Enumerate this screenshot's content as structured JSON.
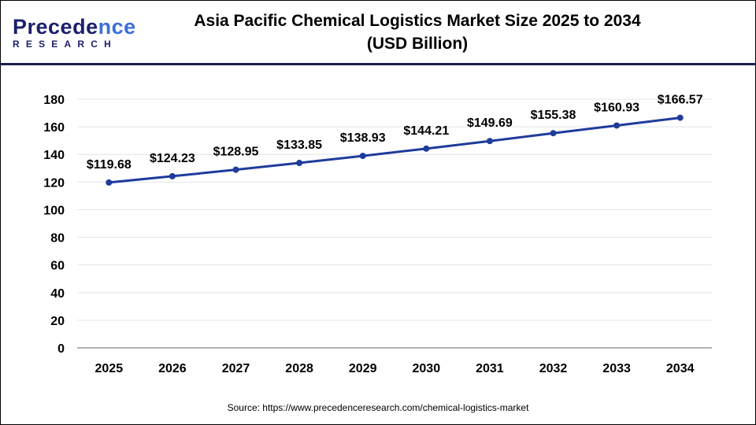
{
  "logo": {
    "line1_a": "P",
    "line1_b": "recede",
    "line1_c": "nce",
    "line2": "RESEARCH"
  },
  "source": "Source: https://www.precedenceresearch.com/chemical-logistics-market",
  "chart_data": {
    "type": "line",
    "title": "Asia Pacific Chemical Logistics Market Size 2025 to 2034",
    "subtitle": "(USD Billion)",
    "xlabel": "",
    "ylabel": "",
    "categories": [
      "2025",
      "2026",
      "2027",
      "2028",
      "2029",
      "2030",
      "2031",
      "2032",
      "2033",
      "2034"
    ],
    "series": [
      {
        "name": "Market Size",
        "values": [
          119.68,
          124.23,
          128.95,
          133.85,
          138.93,
          144.21,
          149.69,
          155.38,
          160.93,
          166.57
        ],
        "color": "#1f3b9c"
      }
    ],
    "data_labels": [
      "$119.68",
      "$124.23",
      "$128.95",
      "$133.85",
      "$138.93",
      "$144.21",
      "$149.69",
      "$155.38",
      "$160.93",
      "$166.57"
    ],
    "ylim": [
      0,
      180
    ],
    "yticks": [
      "0",
      "20",
      "40",
      "60",
      "80",
      "100",
      "120",
      "140",
      "160",
      "180"
    ],
    "grid": true,
    "legend": "none"
  }
}
